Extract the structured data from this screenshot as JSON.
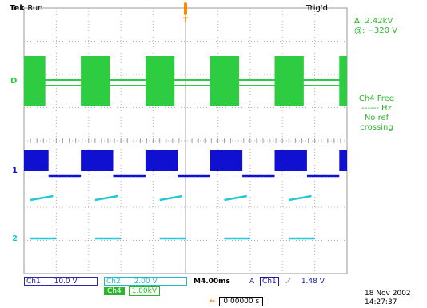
{
  "header": {
    "brand": "Tek",
    "run_state": "Run",
    "trigger_state": "Trig'd"
  },
  "cursor_readout": {
    "delta": "Δ: 2.42kV",
    "at": "@: −320 V"
  },
  "measurement": {
    "line1": "Ch4 Freq",
    "line2": "Hz",
    "line3": "No ref",
    "line4": "crossing"
  },
  "channels": [
    {
      "marker": "D",
      "color": "#2ecc40"
    },
    {
      "marker": "1",
      "color": "#1010d0"
    },
    {
      "marker": "2",
      "color": "#22c8d8"
    }
  ],
  "trigger_marker": {
    "label": "T",
    "color": "#ff8800"
  },
  "footer": {
    "ch1_label": "Ch1",
    "ch1_scale": "10.0 V",
    "ch2_label": "Ch2",
    "ch2_scale": "2.00 V",
    "timebase": "M4.00ms",
    "trigger_label": "A",
    "trigger_source": "Ch1",
    "trigger_slope": "⟋",
    "trigger_level": "1.48 V",
    "math_label": "Ch4",
    "math_scale": "1.00kV",
    "position_arrow": "←",
    "position_value": "0.00000 s",
    "date": "18 Nov 2002",
    "time": "14:27:37"
  },
  "colors": {
    "grid": "#b8b8b8",
    "text_green": "#2bb52b",
    "text_blue": "#1a1aa8"
  }
}
